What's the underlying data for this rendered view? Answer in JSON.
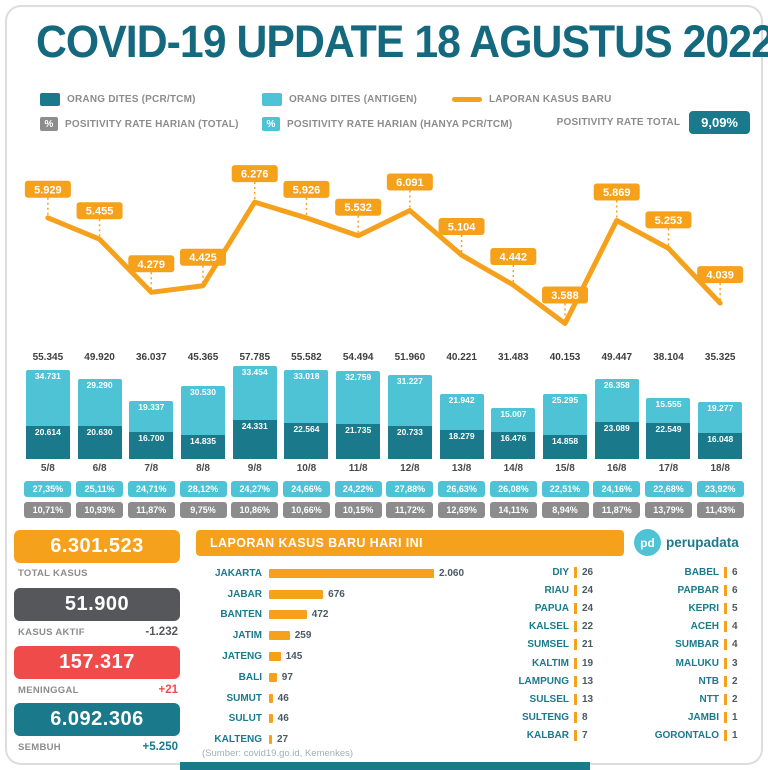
{
  "title": "COVID-19 UPDATE 18 AGUSTUS 2022",
  "legend": {
    "pcr_label": "ORANG DITES (PCR/TCM)",
    "antigen_label": "ORANG DITES (ANTIGEN)",
    "line_label": "LAPORAN KASUS BARU",
    "percent_symbol": "%",
    "positivity_total_label": "POSITIVITY RATE HARIAN (TOTAL)",
    "positivity_pcr_label": "POSITIVITY RATE HARIAN (HANYA PCR/TCM)",
    "positivity_rate_total_label": "POSITIVITY RATE TOTAL",
    "positivity_rate_total_value": "9,09%"
  },
  "colors": {
    "teal": "#1A7A8C",
    "cyan": "#4EC3D5",
    "orange": "#F6A11C",
    "gray": "#8C8C8C",
    "red": "#F04B4B",
    "slate": "#56575B"
  },
  "chart_data": [
    {
      "type": "line",
      "title": "LAPORAN KASUS BARU",
      "x": [
        "5/8",
        "6/8",
        "7/8",
        "8/8",
        "9/8",
        "10/8",
        "11/8",
        "12/8",
        "13/8",
        "14/8",
        "15/8",
        "16/8",
        "17/8",
        "18/8"
      ],
      "values": [
        5929,
        5455,
        4279,
        4425,
        6276,
        5926,
        5532,
        6091,
        5104,
        4442,
        3588,
        5869,
        5253,
        4039
      ],
      "labels": [
        "5.929",
        "5.455",
        "4.279",
        "4.425",
        "6.276",
        "5.926",
        "5.532",
        "6.091",
        "5.104",
        "4.442",
        "3.588",
        "5.869",
        "5.253",
        "4.039"
      ],
      "ylim": [
        3400,
        6500
      ],
      "grid": false,
      "legend_position": "top"
    },
    {
      "type": "bar",
      "title": "ORANG DITES (STACKED, HARIAN)",
      "stacked": true,
      "categories": [
        "5/8",
        "6/8",
        "7/8",
        "8/8",
        "9/8",
        "10/8",
        "11/8",
        "12/8",
        "13/8",
        "14/8",
        "15/8",
        "16/8",
        "17/8",
        "18/8"
      ],
      "series": [
        {
          "name": "ORANG DITES (ANTIGEN)",
          "values": [
            34731,
            29290,
            19337,
            30530,
            33454,
            33018,
            32759,
            31227,
            21942,
            15007,
            25295,
            26358,
            15555,
            19277
          ],
          "labels": [
            "34.731",
            "29.290",
            "19.337",
            "30.530",
            "33.454",
            "33.018",
            "32.759",
            "31.227",
            "21.942",
            "15.007",
            "25.295",
            "26.358",
            "15.555",
            "19.277"
          ]
        },
        {
          "name": "ORANG DITES (PCR/TCM)",
          "values": [
            20614,
            20630,
            16700,
            14835,
            24331,
            22564,
            21735,
            20733,
            18279,
            16476,
            14858,
            23089,
            22549,
            16048
          ],
          "labels": [
            "20.614",
            "20.630",
            "16.700",
            "14.835",
            "24.331",
            "22.564",
            "21.735",
            "20.733",
            "18.279",
            "16.476",
            "14.858",
            "23.089",
            "22.549",
            "16.048"
          ]
        }
      ],
      "totals": [
        55345,
        49920,
        36037,
        45365,
        57785,
        55582,
        54494,
        51960,
        40221,
        31483,
        40153,
        49447,
        38104,
        35325
      ],
      "totals_labels": [
        "55.345",
        "49.920",
        "36.037",
        "45.365",
        "57.785",
        "55.582",
        "54.494",
        "51.960",
        "40.221",
        "31.483",
        "40.153",
        "49.447",
        "38.104",
        "35.325"
      ],
      "positivity_pcr": [
        "27,35%",
        "25,11%",
        "24,71%",
        "28,12%",
        "24,27%",
        "24,66%",
        "24,22%",
        "27,88%",
        "26,63%",
        "26,08%",
        "22,51%",
        "24,16%",
        "22,68%",
        "23,92%"
      ],
      "positivity_total": [
        "10,71%",
        "10,93%",
        "11,87%",
        "9,75%",
        "10,86%",
        "10,66%",
        "10,15%",
        "11,72%",
        "12,69%",
        "14,11%",
        "8,94%",
        "11,87%",
        "13,79%",
        "11,43%"
      ]
    },
    {
      "type": "bar",
      "orientation": "horizontal",
      "title": "LAPORAN KASUS BARU HARI INI",
      "categories": [
        "JAKARTA",
        "JABAR",
        "BANTEN",
        "JATIM",
        "JATENG",
        "BALI",
        "SUMUT",
        "SULUT",
        "KALTENG"
      ],
      "values": [
        2060,
        676,
        472,
        259,
        145,
        97,
        46,
        46,
        27
      ],
      "labels": [
        "2.060",
        "676",
        "472",
        "259",
        "145",
        "97",
        "46",
        "46",
        "27"
      ]
    }
  ],
  "stats": {
    "total": {
      "value": "6.301.523",
      "label": "TOTAL KASUS",
      "delta": ""
    },
    "aktif": {
      "value": "51.900",
      "label": "KASUS AKTIF",
      "delta": "-1.232"
    },
    "meninggal": {
      "value": "157.317",
      "label": "MENINGGAL",
      "delta": "+21"
    },
    "sembuh": {
      "value": "6.092.306",
      "label": "SEMBUH",
      "delta": "+5.250"
    }
  },
  "panel": {
    "header": "LAPORAN KASUS BARU HARI INI",
    "source": "(Sumber: covid19.go.id, Kemenkes)"
  },
  "province_list_2": [
    {
      "name": "DIY",
      "value": "26"
    },
    {
      "name": "RIAU",
      "value": "24"
    },
    {
      "name": "PAPUA",
      "value": "24"
    },
    {
      "name": "KALSEL",
      "value": "22"
    },
    {
      "name": "SUMSEL",
      "value": "21"
    },
    {
      "name": "KALTIM",
      "value": "19"
    },
    {
      "name": "LAMPUNG",
      "value": "13"
    },
    {
      "name": "SULSEL",
      "value": "13"
    },
    {
      "name": "SULTENG",
      "value": "8"
    },
    {
      "name": "KALBAR",
      "value": "7"
    }
  ],
  "province_list_3": [
    {
      "name": "BABEL",
      "value": "6"
    },
    {
      "name": "PAPBAR",
      "value": "6"
    },
    {
      "name": "KEPRI",
      "value": "5"
    },
    {
      "name": "ACEH",
      "value": "4"
    },
    {
      "name": "SUMBAR",
      "value": "4"
    },
    {
      "name": "MALUKU",
      "value": "3"
    },
    {
      "name": "NTB",
      "value": "2"
    },
    {
      "name": "NTT",
      "value": "2"
    },
    {
      "name": "JAMBI",
      "value": "1"
    },
    {
      "name": "GORONTALO",
      "value": "1"
    }
  ],
  "brand": {
    "initials": "pd",
    "name": "perupadata"
  }
}
